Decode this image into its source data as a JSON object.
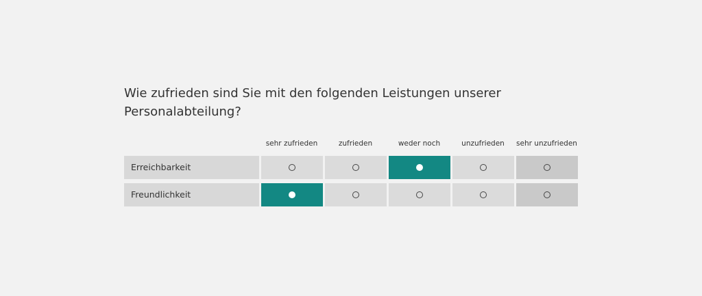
{
  "question": "Wie zufrieden sind Sie mit den folgenden Leistungen unserer Personalabteilung?",
  "columns": [
    "sehr zufrieden",
    "zufrieden",
    "weder noch",
    "unzufrieden",
    "sehr unzufrieden"
  ],
  "rows": [
    {
      "label": "Erreichbarkeit",
      "selected": "weder noch"
    },
    {
      "label": "Freundlichkeit",
      "selected": "sehr zufrieden"
    }
  ],
  "colors": {
    "selected": "#138883",
    "background": "#f2f2f2"
  }
}
